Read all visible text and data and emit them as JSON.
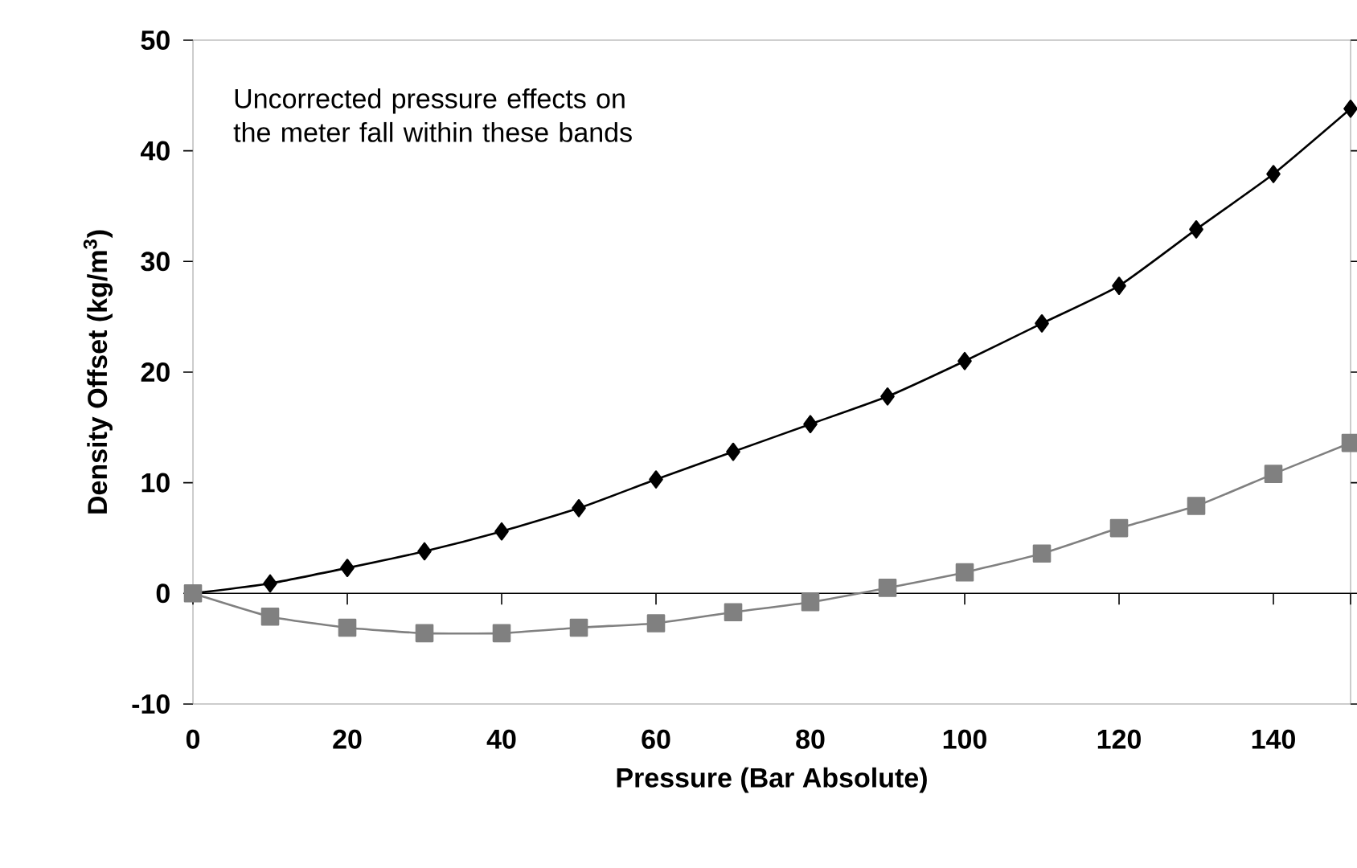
{
  "chart_data": {
    "type": "line",
    "xlabel": "Pressure (Bar Absolute)",
    "ylabel": "Density Offset (kg/m$^{3}$)",
    "annotations": [
      "Uncorrected pressure effects on the meter fall within these bands"
    ],
    "x": [
      0,
      10,
      20,
      30,
      40,
      50,
      60,
      70,
      80,
      90,
      100,
      110,
      120,
      130,
      140,
      150
    ],
    "series": [
      {
        "color": "#000000",
        "marker": "diamond",
        "values": [
          0,
          0.9,
          2.3,
          3.8,
          5.6,
          7.7,
          10.3,
          12.8,
          15.3,
          17.8,
          21,
          24.4,
          27.8,
          32.9,
          37.9,
          43.8
        ]
      },
      {
        "color": "#808080",
        "marker": "square",
        "values": [
          0,
          -2.1,
          -3.1,
          -3.6,
          -3.6,
          -3.1,
          -2.7,
          -1.7,
          -0.8,
          0.5,
          1.9,
          3.6,
          5.9,
          7.9,
          10.8,
          13.6
        ]
      }
    ],
    "xlim": [
      0,
      150
    ],
    "ylim": [
      -10,
      50
    ],
    "xticks": [
      0,
      20,
      40,
      60,
      80,
      100,
      120,
      140
    ],
    "yticks": [
      -10,
      0,
      10,
      20,
      30,
      40,
      50
    ],
    "ref_lines": [
      {
        "axis": "y",
        "value": 0,
        "color": "#000000"
      }
    ],
    "grid": false
  }
}
